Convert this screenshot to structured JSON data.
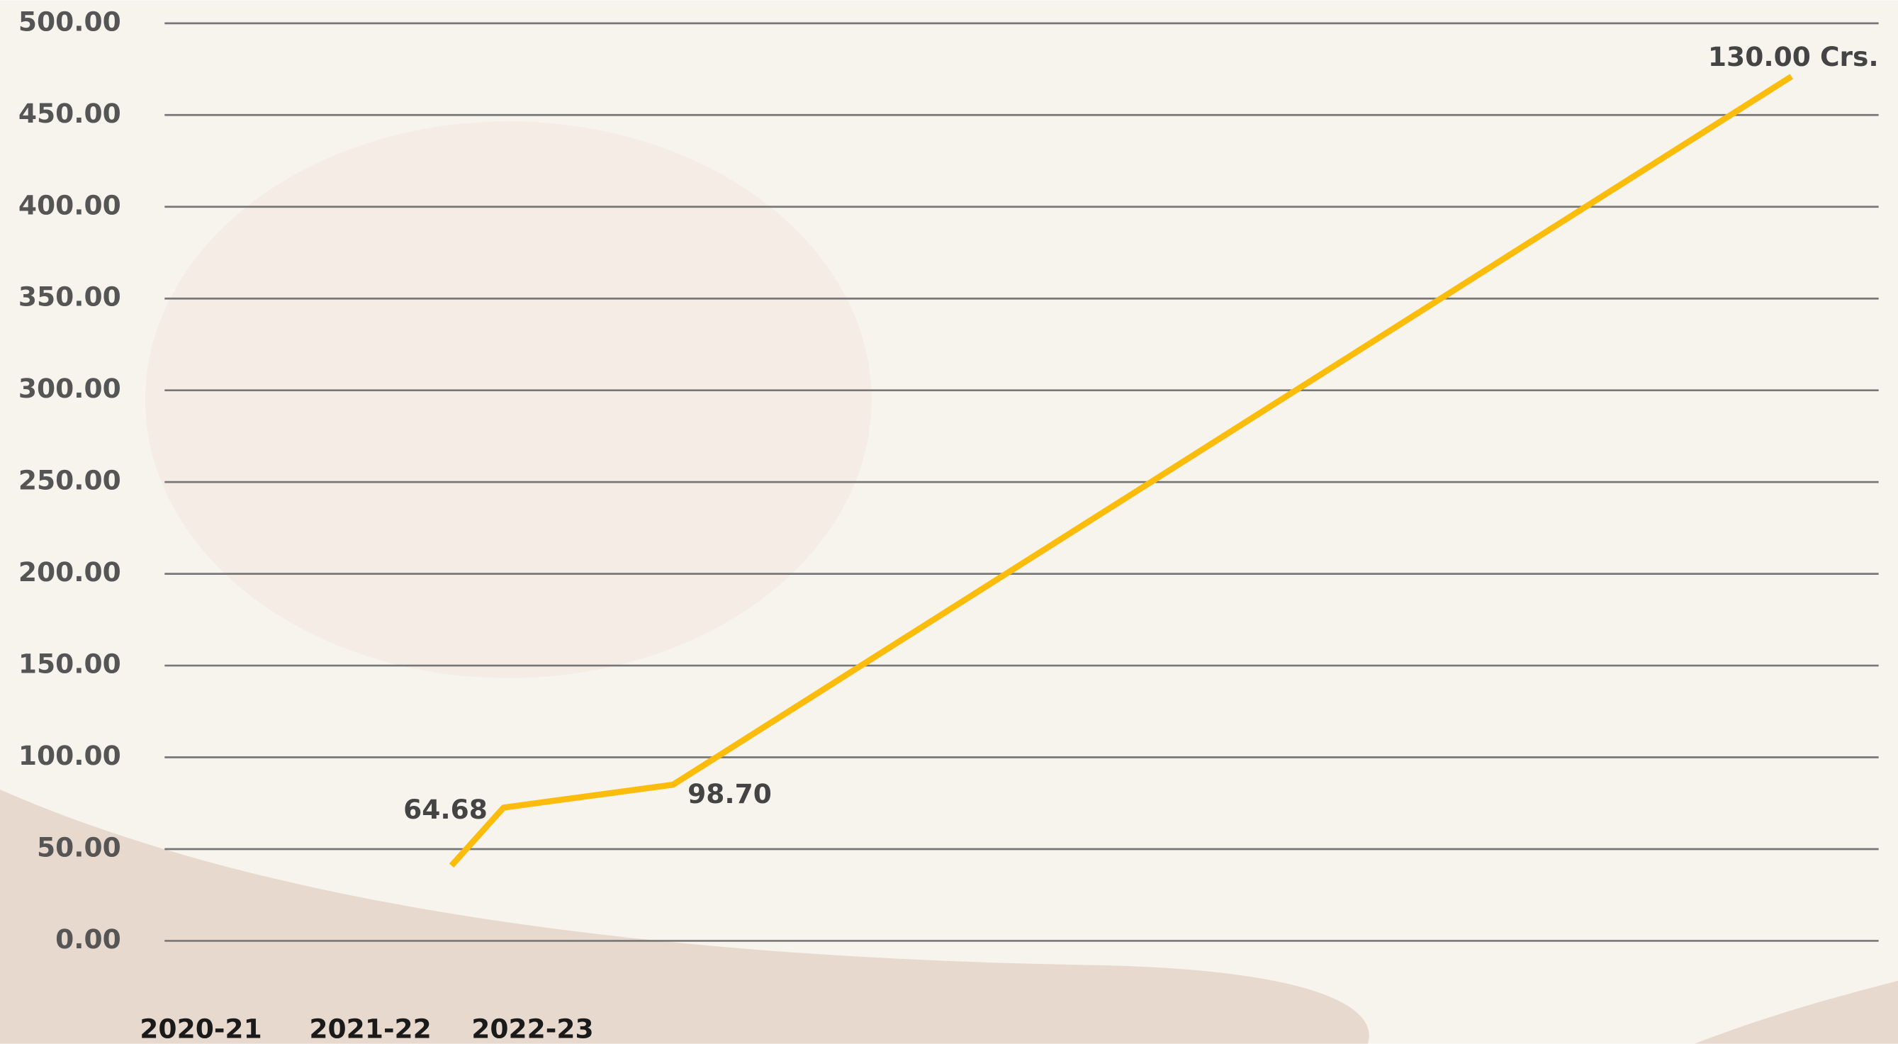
{
  "chart_data": {
    "type": "line",
    "categories": [
      "2020-21",
      "2021-22",
      "2022-23",
      null
    ],
    "series": [
      {
        "color": "#fbbc0c",
        "values": [
          41,
          72.6,
          85.1,
          471
        ]
      }
    ],
    "annotations": [
      "64.68",
      "98.70",
      "130.00 Crs."
    ],
    "ylim": [
      0,
      500
    ],
    "yticks": [
      {
        "value": 0,
        "label": "0.00"
      },
      {
        "value": 50,
        "label": "50.00"
      },
      {
        "value": 100,
        "label": "100.00"
      },
      {
        "value": 150,
        "label": "150.00"
      },
      {
        "value": 200,
        "label": "200.00"
      },
      {
        "value": 250,
        "label": "250.00"
      },
      {
        "value": 300,
        "label": "300.00"
      },
      {
        "value": 350,
        "label": "350.00"
      },
      {
        "value": 400,
        "label": "400.00"
      },
      {
        "value": 450,
        "label": "450.00"
      },
      {
        "value": 500,
        "label": "500.00"
      }
    ],
    "grid": true
  }
}
